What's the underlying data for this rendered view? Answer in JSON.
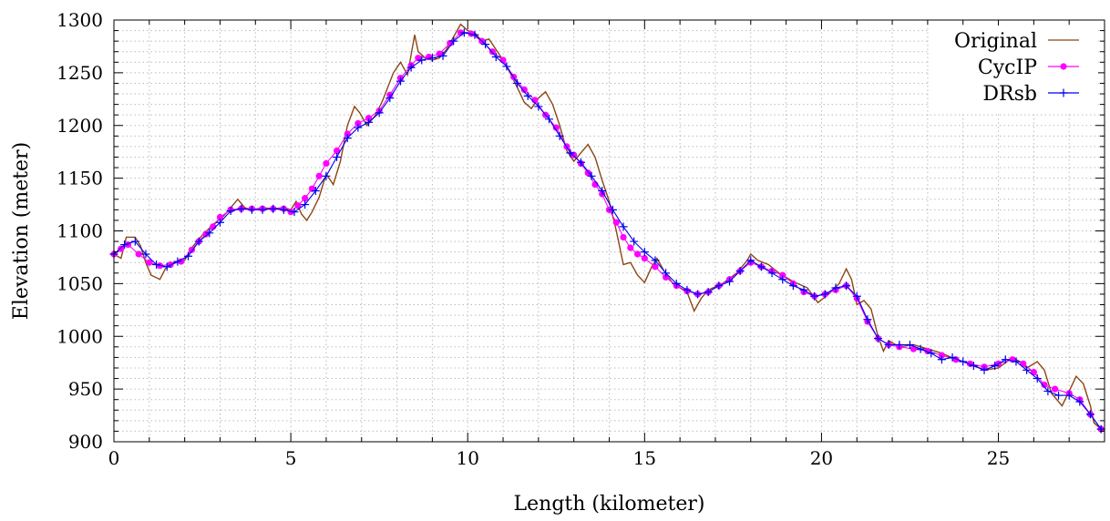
{
  "chart_data": {
    "type": "line",
    "xlabel": "Length (kilometer)",
    "ylabel": "Elevation (meter)",
    "xlim": [
      0,
      28
    ],
    "ylim": [
      900,
      1300
    ],
    "xticks": [
      0,
      5,
      10,
      15,
      20,
      25
    ],
    "yticks": [
      900,
      950,
      1000,
      1050,
      1100,
      1150,
      1200,
      1250,
      1300
    ],
    "grid": true,
    "legend_position": "top-right",
    "series": [
      {
        "name": "Original",
        "color": "#8b4513",
        "marker": "none",
        "points": [
          [
            0,
            1078
          ],
          [
            0.2,
            1074
          ],
          [
            0.35,
            1094
          ],
          [
            0.6,
            1094
          ],
          [
            0.75,
            1086
          ],
          [
            0.9,
            1070
          ],
          [
            1.05,
            1058
          ],
          [
            1.3,
            1054
          ],
          [
            1.45,
            1064
          ],
          [
            1.7,
            1070
          ],
          [
            2.0,
            1072
          ],
          [
            2.2,
            1084
          ],
          [
            2.5,
            1096
          ],
          [
            2.8,
            1106
          ],
          [
            3.1,
            1114
          ],
          [
            3.35,
            1124
          ],
          [
            3.5,
            1130
          ],
          [
            3.7,
            1122
          ],
          [
            3.9,
            1120
          ],
          [
            4.2,
            1122
          ],
          [
            4.5,
            1121
          ],
          [
            4.8,
            1122
          ],
          [
            5.0,
            1120
          ],
          [
            5.15,
            1128
          ],
          [
            5.3,
            1116
          ],
          [
            5.45,
            1110
          ],
          [
            5.6,
            1118
          ],
          [
            5.8,
            1132
          ],
          [
            6.0,
            1154
          ],
          [
            6.2,
            1144
          ],
          [
            6.4,
            1166
          ],
          [
            6.6,
            1200
          ],
          [
            6.8,
            1218
          ],
          [
            6.95,
            1212
          ],
          [
            7.15,
            1200
          ],
          [
            7.4,
            1210
          ],
          [
            7.6,
            1224
          ],
          [
            7.9,
            1250
          ],
          [
            8.1,
            1260
          ],
          [
            8.3,
            1248
          ],
          [
            8.5,
            1286
          ],
          [
            8.6,
            1270
          ],
          [
            8.8,
            1264
          ],
          [
            9.0,
            1262
          ],
          [
            9.2,
            1264
          ],
          [
            9.4,
            1272
          ],
          [
            9.6,
            1284
          ],
          [
            9.8,
            1296
          ],
          [
            10.0,
            1290
          ],
          [
            10.2,
            1288
          ],
          [
            10.4,
            1280
          ],
          [
            10.6,
            1282
          ],
          [
            10.8,
            1272
          ],
          [
            11.0,
            1262
          ],
          [
            11.2,
            1250
          ],
          [
            11.4,
            1236
          ],
          [
            11.6,
            1222
          ],
          [
            11.8,
            1216
          ],
          [
            12.0,
            1226
          ],
          [
            12.2,
            1232
          ],
          [
            12.4,
            1220
          ],
          [
            12.6,
            1200
          ],
          [
            12.8,
            1176
          ],
          [
            13.0,
            1166
          ],
          [
            13.2,
            1174
          ],
          [
            13.4,
            1182
          ],
          [
            13.6,
            1170
          ],
          [
            13.8,
            1148
          ],
          [
            14.0,
            1128
          ],
          [
            14.2,
            1100
          ],
          [
            14.4,
            1068
          ],
          [
            14.6,
            1070
          ],
          [
            14.8,
            1058
          ],
          [
            15.0,
            1051
          ],
          [
            15.2,
            1066
          ],
          [
            15.35,
            1074
          ],
          [
            15.55,
            1062
          ],
          [
            15.8,
            1050
          ],
          [
            16.0,
            1046
          ],
          [
            16.2,
            1042
          ],
          [
            16.4,
            1024
          ],
          [
            16.6,
            1036
          ],
          [
            16.8,
            1044
          ],
          [
            17.2,
            1050
          ],
          [
            17.6,
            1060
          ],
          [
            17.9,
            1072
          ],
          [
            18.0,
            1078
          ],
          [
            18.2,
            1072
          ],
          [
            18.5,
            1068
          ],
          [
            18.8,
            1060
          ],
          [
            19.2,
            1052
          ],
          [
            19.6,
            1046
          ],
          [
            19.9,
            1032
          ],
          [
            20.2,
            1040
          ],
          [
            20.5,
            1050
          ],
          [
            20.7,
            1064
          ],
          [
            20.85,
            1054
          ],
          [
            21.0,
            1030
          ],
          [
            21.2,
            1034
          ],
          [
            21.4,
            1026
          ],
          [
            21.6,
            1000
          ],
          [
            21.75,
            986
          ],
          [
            21.9,
            996
          ],
          [
            22.2,
            990
          ],
          [
            22.6,
            992
          ],
          [
            23.0,
            988
          ],
          [
            23.4,
            984
          ],
          [
            23.8,
            978
          ],
          [
            24.2,
            974
          ],
          [
            24.6,
            968
          ],
          [
            25.0,
            970
          ],
          [
            25.4,
            980
          ],
          [
            25.6,
            976
          ],
          [
            25.8,
            970
          ],
          [
            26.1,
            976
          ],
          [
            26.3,
            968
          ],
          [
            26.5,
            946
          ],
          [
            26.8,
            934
          ],
          [
            27.0,
            948
          ],
          [
            27.2,
            962
          ],
          [
            27.4,
            955
          ],
          [
            27.6,
            934
          ],
          [
            27.7,
            918
          ],
          [
            27.9,
            912
          ]
        ]
      },
      {
        "name": "CycIP",
        "color": "#ff00ff",
        "marker": "circle",
        "points": [
          [
            0,
            1078
          ],
          [
            0.2,
            1083
          ],
          [
            0.4,
            1087
          ],
          [
            0.7,
            1078
          ],
          [
            1.0,
            1070
          ],
          [
            1.3,
            1067
          ],
          [
            1.6,
            1068
          ],
          [
            1.9,
            1071
          ],
          [
            2.2,
            1082
          ],
          [
            2.4,
            1090
          ],
          [
            2.6,
            1097
          ],
          [
            2.8,
            1104
          ],
          [
            3.0,
            1113
          ],
          [
            3.3,
            1120
          ],
          [
            3.6,
            1121
          ],
          [
            3.9,
            1121
          ],
          [
            4.2,
            1121
          ],
          [
            4.5,
            1121
          ],
          [
            4.8,
            1121
          ],
          [
            5.0,
            1118
          ],
          [
            5.2,
            1124
          ],
          [
            5.4,
            1131
          ],
          [
            5.6,
            1140
          ],
          [
            5.8,
            1152
          ],
          [
            6.0,
            1164
          ],
          [
            6.3,
            1176
          ],
          [
            6.6,
            1192
          ],
          [
            6.9,
            1202
          ],
          [
            7.2,
            1207
          ],
          [
            7.5,
            1214
          ],
          [
            7.8,
            1229
          ],
          [
            8.1,
            1245
          ],
          [
            8.4,
            1257
          ],
          [
            8.6,
            1264
          ],
          [
            8.9,
            1265
          ],
          [
            9.2,
            1268
          ],
          [
            9.5,
            1278
          ],
          [
            9.8,
            1288
          ],
          [
            10.1,
            1287
          ],
          [
            10.4,
            1280
          ],
          [
            10.7,
            1270
          ],
          [
            11.0,
            1262
          ],
          [
            11.3,
            1246
          ],
          [
            11.6,
            1234
          ],
          [
            11.9,
            1224
          ],
          [
            12.2,
            1210
          ],
          [
            12.5,
            1198
          ],
          [
            12.8,
            1180
          ],
          [
            13.0,
            1172
          ],
          [
            13.2,
            1164
          ],
          [
            13.4,
            1155
          ],
          [
            13.6,
            1144
          ],
          [
            13.8,
            1135
          ],
          [
            14.0,
            1120
          ],
          [
            14.2,
            1108
          ],
          [
            14.4,
            1094
          ],
          [
            14.6,
            1084
          ],
          [
            14.8,
            1078
          ],
          [
            15.0,
            1074
          ],
          [
            15.3,
            1066
          ],
          [
            15.6,
            1056
          ],
          [
            15.9,
            1048
          ],
          [
            16.2,
            1043
          ],
          [
            16.5,
            1040
          ],
          [
            16.8,
            1042
          ],
          [
            17.1,
            1048
          ],
          [
            17.4,
            1054
          ],
          [
            17.7,
            1062
          ],
          [
            18.0,
            1070
          ],
          [
            18.3,
            1066
          ],
          [
            18.6,
            1062
          ],
          [
            18.9,
            1058
          ],
          [
            19.2,
            1050
          ],
          [
            19.5,
            1042
          ],
          [
            19.8,
            1038
          ],
          [
            20.1,
            1040
          ],
          [
            20.4,
            1044
          ],
          [
            20.7,
            1048
          ],
          [
            21.0,
            1036
          ],
          [
            21.3,
            1014
          ],
          [
            21.6,
            998
          ],
          [
            21.9,
            992
          ],
          [
            22.2,
            990
          ],
          [
            22.6,
            988
          ],
          [
            23.0,
            986
          ],
          [
            23.4,
            982
          ],
          [
            23.8,
            978
          ],
          [
            24.2,
            974
          ],
          [
            24.6,
            971
          ],
          [
            25.0,
            974
          ],
          [
            25.4,
            978
          ],
          [
            25.7,
            974
          ],
          [
            26.0,
            966
          ],
          [
            26.3,
            954
          ],
          [
            26.6,
            950
          ],
          [
            27.0,
            946
          ],
          [
            27.3,
            940
          ],
          [
            27.6,
            926
          ],
          [
            27.9,
            912
          ]
        ]
      },
      {
        "name": "DRsb",
        "color": "#0000ee",
        "marker": "plus",
        "points": [
          [
            0,
            1078
          ],
          [
            0.3,
            1087
          ],
          [
            0.6,
            1090
          ],
          [
            0.9,
            1078
          ],
          [
            1.2,
            1068
          ],
          [
            1.5,
            1066
          ],
          [
            1.8,
            1071
          ],
          [
            2.1,
            1076
          ],
          [
            2.4,
            1090
          ],
          [
            2.7,
            1098
          ],
          [
            3.0,
            1108
          ],
          [
            3.3,
            1119
          ],
          [
            3.6,
            1121
          ],
          [
            3.9,
            1120
          ],
          [
            4.2,
            1120
          ],
          [
            4.5,
            1121
          ],
          [
            4.8,
            1120
          ],
          [
            5.1,
            1118
          ],
          [
            5.4,
            1125
          ],
          [
            5.7,
            1138
          ],
          [
            6.0,
            1152
          ],
          [
            6.3,
            1170
          ],
          [
            6.6,
            1188
          ],
          [
            6.9,
            1198
          ],
          [
            7.2,
            1203
          ],
          [
            7.5,
            1212
          ],
          [
            7.8,
            1226
          ],
          [
            8.1,
            1242
          ],
          [
            8.4,
            1255
          ],
          [
            8.7,
            1262
          ],
          [
            9.0,
            1264
          ],
          [
            9.3,
            1266
          ],
          [
            9.6,
            1280
          ],
          [
            9.9,
            1288
          ],
          [
            10.2,
            1286
          ],
          [
            10.5,
            1277
          ],
          [
            10.8,
            1265
          ],
          [
            11.1,
            1256
          ],
          [
            11.4,
            1240
          ],
          [
            11.7,
            1228
          ],
          [
            12.0,
            1218
          ],
          [
            12.3,
            1206
          ],
          [
            12.6,
            1190
          ],
          [
            12.9,
            1174
          ],
          [
            13.2,
            1165
          ],
          [
            13.5,
            1152
          ],
          [
            13.8,
            1138
          ],
          [
            14.1,
            1120
          ],
          [
            14.4,
            1104
          ],
          [
            14.7,
            1090
          ],
          [
            15.0,
            1080
          ],
          [
            15.3,
            1072
          ],
          [
            15.6,
            1060
          ],
          [
            15.9,
            1050
          ],
          [
            16.2,
            1044
          ],
          [
            16.5,
            1040
          ],
          [
            16.8,
            1042
          ],
          [
            17.1,
            1048
          ],
          [
            17.4,
            1052
          ],
          [
            17.7,
            1062
          ],
          [
            18.0,
            1072
          ],
          [
            18.3,
            1066
          ],
          [
            18.6,
            1060
          ],
          [
            18.9,
            1054
          ],
          [
            19.2,
            1048
          ],
          [
            19.5,
            1044
          ],
          [
            19.8,
            1038
          ],
          [
            20.1,
            1040
          ],
          [
            20.4,
            1046
          ],
          [
            20.7,
            1048
          ],
          [
            21.0,
            1038
          ],
          [
            21.3,
            1016
          ],
          [
            21.6,
            998
          ],
          [
            21.9,
            992
          ],
          [
            22.2,
            992
          ],
          [
            22.5,
            992
          ],
          [
            22.8,
            988
          ],
          [
            23.1,
            984
          ],
          [
            23.4,
            978
          ],
          [
            23.7,
            980
          ],
          [
            24.0,
            976
          ],
          [
            24.3,
            972
          ],
          [
            24.6,
            968
          ],
          [
            24.9,
            972
          ],
          [
            25.2,
            978
          ],
          [
            25.5,
            976
          ],
          [
            25.8,
            968
          ],
          [
            26.1,
            960
          ],
          [
            26.4,
            948
          ],
          [
            26.7,
            944
          ],
          [
            27.0,
            944
          ],
          [
            27.3,
            938
          ],
          [
            27.6,
            926
          ],
          [
            27.9,
            912
          ]
        ]
      }
    ]
  }
}
